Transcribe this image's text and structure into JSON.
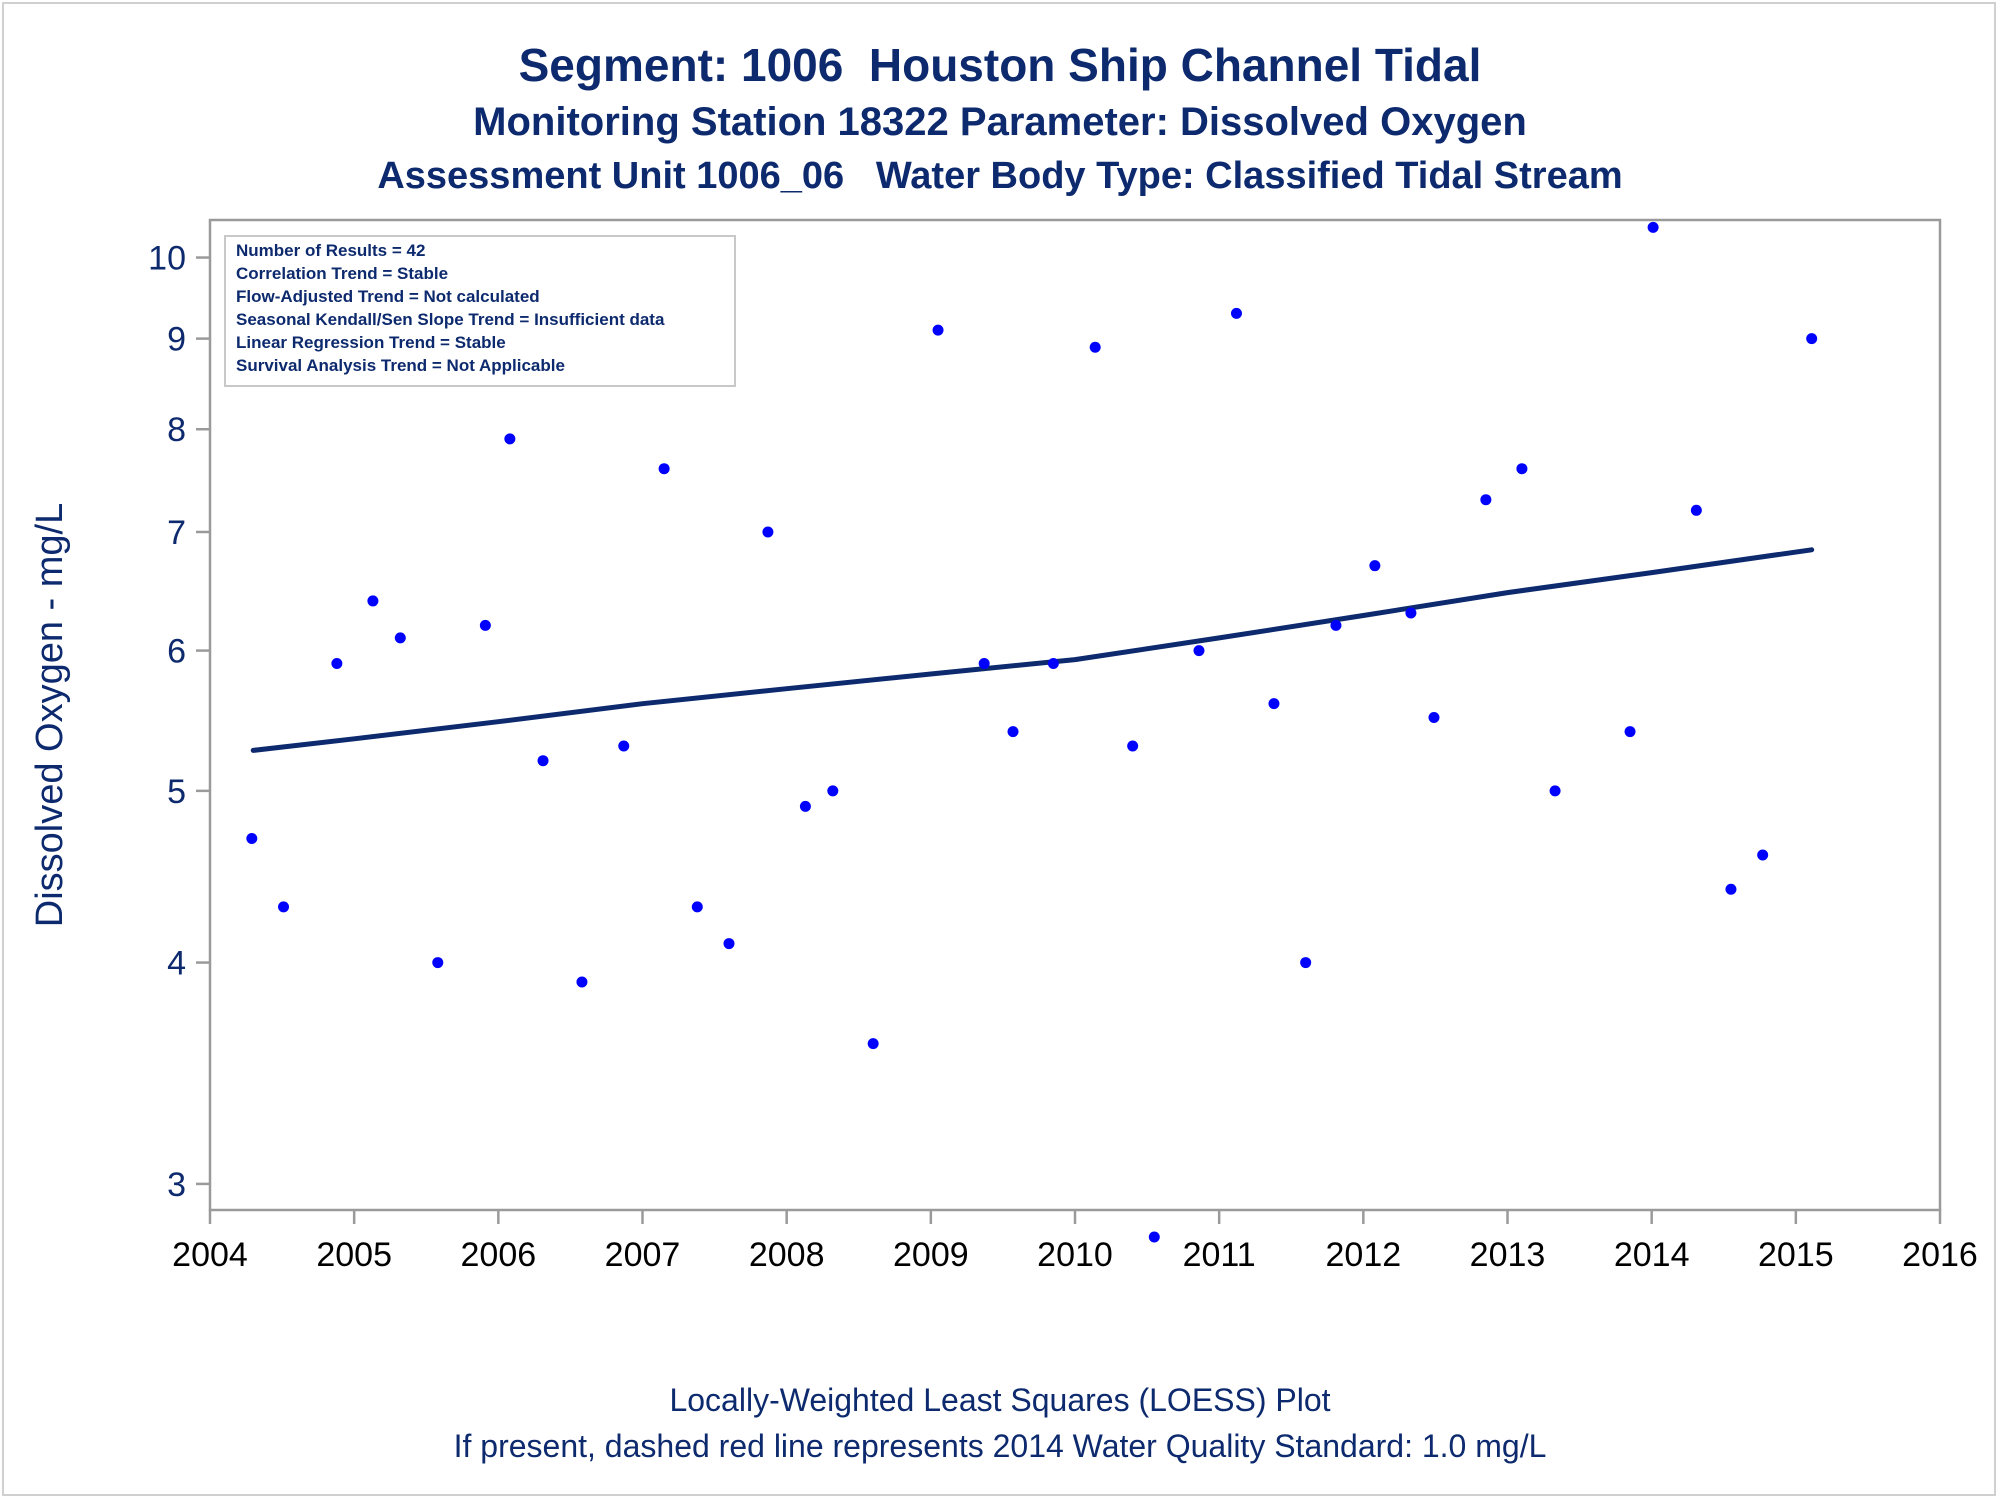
{
  "chart_data": {
    "type": "scatter",
    "title": "Segment: 1006  Houston Ship Channel Tidal",
    "subtitle": "Monitoring Station 18322 Parameter: Dissolved Oxygen",
    "subtitle2": "Assessment Unit 1006_06   Water Body Type: Classified Tidal Stream",
    "xlabel": "",
    "ylabel": "Dissolved Oxygen - mg/L",
    "xlim": [
      2004,
      2016
    ],
    "ylim": [
      2.9,
      10.5
    ],
    "yscale": "log",
    "x_ticks": [
      "2004",
      "2005",
      "2006",
      "2007",
      "2008",
      "2009",
      "2010",
      "2011",
      "2012",
      "2013",
      "2014",
      "2015",
      "2016"
    ],
    "y_ticks": [
      "3",
      "4",
      "5",
      "6",
      "7",
      "8",
      "9",
      "10"
    ],
    "grid": false,
    "stats_box": [
      "Number of Results = 42",
      "Correlation Trend = Stable",
      "Flow-Adjusted Trend = Not calculated",
      "Seasonal Kendall/Sen Slope Trend = Insufficient data",
      "Linear Regression Trend = Stable",
      "Survival Analysis Trend = Not Applicable"
    ],
    "stats_box_position": "top-left",
    "points": [
      {
        "x": 2004.29,
        "y": 4.7
      },
      {
        "x": 2004.51,
        "y": 4.3
      },
      {
        "x": 2004.88,
        "y": 5.9
      },
      {
        "x": 2005.13,
        "y": 6.4
      },
      {
        "x": 2005.32,
        "y": 6.1
      },
      {
        "x": 2005.58,
        "y": 4.0
      },
      {
        "x": 2005.91,
        "y": 6.2
      },
      {
        "x": 2006.08,
        "y": 7.9
      },
      {
        "x": 2006.31,
        "y": 5.2
      },
      {
        "x": 2006.58,
        "y": 3.9
      },
      {
        "x": 2006.87,
        "y": 5.3
      },
      {
        "x": 2007.15,
        "y": 7.6
      },
      {
        "x": 2007.38,
        "y": 4.3
      },
      {
        "x": 2007.6,
        "y": 4.1
      },
      {
        "x": 2007.87,
        "y": 7.0
      },
      {
        "x": 2008.13,
        "y": 4.9
      },
      {
        "x": 2008.32,
        "y": 5.0
      },
      {
        "x": 2008.6,
        "y": 3.6
      },
      {
        "x": 2009.05,
        "y": 9.1
      },
      {
        "x": 2009.37,
        "y": 5.9
      },
      {
        "x": 2009.57,
        "y": 5.4
      },
      {
        "x": 2009.85,
        "y": 5.9
      },
      {
        "x": 2010.14,
        "y": 8.9
      },
      {
        "x": 2010.4,
        "y": 5.3
      },
      {
        "x": 2010.55,
        "y": 2.8
      },
      {
        "x": 2010.86,
        "y": 6.0
      },
      {
        "x": 2011.12,
        "y": 9.3
      },
      {
        "x": 2011.38,
        "y": 5.6
      },
      {
        "x": 2011.6,
        "y": 4.0
      },
      {
        "x": 2011.81,
        "y": 6.2
      },
      {
        "x": 2012.08,
        "y": 6.7
      },
      {
        "x": 2012.33,
        "y": 6.3
      },
      {
        "x": 2012.49,
        "y": 5.5
      },
      {
        "x": 2012.85,
        "y": 7.3
      },
      {
        "x": 2013.1,
        "y": 7.6
      },
      {
        "x": 2013.33,
        "y": 5.0
      },
      {
        "x": 2013.85,
        "y": 5.4
      },
      {
        "x": 2014.01,
        "y": 10.4
      },
      {
        "x": 2014.31,
        "y": 7.2
      },
      {
        "x": 2014.55,
        "y": 4.4
      },
      {
        "x": 2014.77,
        "y": 4.6
      },
      {
        "x": 2015.11,
        "y": 9.0
      }
    ],
    "loess_line": [
      {
        "x": 2004.3,
        "y": 5.27
      },
      {
        "x": 2005.0,
        "y": 5.35
      },
      {
        "x": 2006.0,
        "y": 5.47
      },
      {
        "x": 2007.0,
        "y": 5.6
      },
      {
        "x": 2008.0,
        "y": 5.71
      },
      {
        "x": 2009.0,
        "y": 5.82
      },
      {
        "x": 2010.0,
        "y": 5.93
      },
      {
        "x": 2011.0,
        "y": 6.1
      },
      {
        "x": 2012.0,
        "y": 6.28
      },
      {
        "x": 2013.0,
        "y": 6.47
      },
      {
        "x": 2014.0,
        "y": 6.64
      },
      {
        "x": 2015.11,
        "y": 6.84
      }
    ],
    "colors": {
      "points": "#0000ff",
      "loess": "#0d2a6e",
      "text": "#0d2a6e",
      "axis": "#9a9a9a"
    },
    "footnote1": "Locally-Weighted Least Squares (LOESS) Plot",
    "footnote2": "If present, dashed red line represents 2014 Water Quality Standard: 1.0 mg/L"
  }
}
